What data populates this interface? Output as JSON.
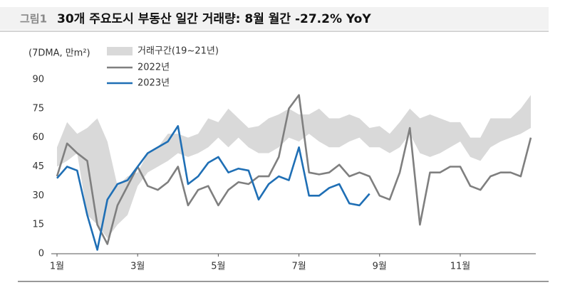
{
  "chart_data": {
    "type": "line",
    "label": "그림1",
    "title": "30개 주요도시 부동산 일간 거래량: 8월 월간 -27.2% YoY",
    "unit": "(7DMA, 만m²)",
    "categories": [
      "1월",
      null,
      null,
      null,
      null,
      null,
      null,
      null,
      "3월",
      null,
      null,
      null,
      null,
      null,
      null,
      null,
      "5월",
      null,
      null,
      null,
      null,
      null,
      null,
      null,
      "7월",
      null,
      null,
      null,
      null,
      null,
      null,
      null,
      "9월",
      null,
      null,
      null,
      null,
      null,
      null,
      null,
      "11월",
      null,
      null,
      null,
      null,
      null,
      null,
      null
    ],
    "band": {
      "name": "거래구간(19~21년)",
      "color": "#d9d9d9",
      "low": [
        45,
        48,
        52,
        20,
        15,
        8,
        15,
        20,
        35,
        42,
        45,
        48,
        52,
        50,
        52,
        55,
        60,
        55,
        60,
        55,
        52,
        52,
        55,
        60,
        58,
        62,
        58,
        55,
        55,
        58,
        60,
        55,
        55,
        52,
        55,
        62,
        52,
        50,
        52,
        55,
        58,
        50,
        48,
        55,
        58,
        60,
        62,
        65
      ],
      "high": [
        55,
        68,
        62,
        65,
        70,
        58,
        35,
        40,
        42,
        52,
        55,
        62,
        62,
        60,
        62,
        70,
        68,
        75,
        70,
        65,
        66,
        70,
        72,
        75,
        72,
        72,
        75,
        70,
        70,
        72,
        70,
        65,
        66,
        62,
        68,
        75,
        70,
        72,
        70,
        68,
        68,
        60,
        60,
        70,
        70,
        70,
        75,
        82
      ]
    },
    "series": [
      {
        "name": "2022년",
        "color": "#7f7f7f",
        "values": [
          40,
          57,
          52,
          48,
          15,
          5,
          25,
          35,
          45,
          35,
          33,
          37,
          45,
          25,
          33,
          35,
          25,
          33,
          37,
          36,
          40,
          40,
          50,
          75,
          82,
          42,
          41,
          42,
          46,
          40,
          42,
          40,
          30,
          28,
          42,
          65,
          15,
          42,
          42,
          45,
          45,
          35,
          33,
          40,
          42,
          42,
          40,
          60
        ]
      },
      {
        "name": "2023년",
        "color": "#1f6fb5",
        "values": [
          39,
          45,
          43,
          20,
          2,
          28,
          36,
          38,
          45,
          52,
          55,
          58,
          66,
          36,
          40,
          47,
          50,
          42,
          44,
          43,
          28,
          36,
          40,
          38,
          55,
          30,
          30,
          34,
          36,
          26,
          25,
          31,
          null,
          null,
          null,
          null,
          null,
          null,
          null,
          null,
          null,
          null,
          null,
          null,
          null,
          null,
          null,
          null
        ]
      }
    ],
    "ylim": [
      0,
      90
    ],
    "yticks": [
      0,
      15,
      30,
      45,
      60,
      75,
      90
    ],
    "grid": false
  }
}
